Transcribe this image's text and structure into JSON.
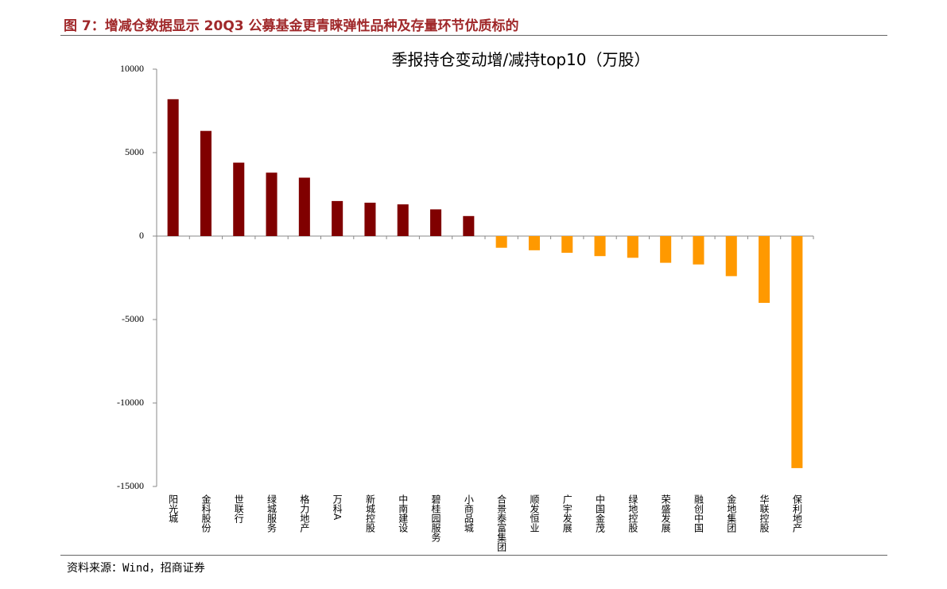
{
  "header": {
    "title": "图 7：增减仓数据显示 20Q3 公募基金更青睐弹性品种及存量环节优质标的"
  },
  "chart_data": {
    "type": "bar",
    "title": "季报持仓变动增/减持top10（万股）",
    "categories": [
      "阳光城",
      "金科股份",
      "世联行",
      "绿城服务",
      "格力地产",
      "万科A",
      "新城控股",
      "中南建设",
      "碧桂园服务",
      "小商品城",
      "合景泰富集团",
      "顺发恒业",
      "广宇发展",
      "中国金茂",
      "绿地控股",
      "荣盛发展",
      "融创中国",
      "金地集团",
      "华联控股",
      "保利地产"
    ],
    "values": [
      8200,
      6300,
      4400,
      3800,
      3500,
      2100,
      2000,
      1900,
      1600,
      1200,
      -700,
      -850,
      -1000,
      -1200,
      -1300,
      -1600,
      -1700,
      -2400,
      -4000,
      -13900
    ],
    "color_positive": "#800000",
    "color_negative": "#ff9900",
    "ylim": [
      -15000,
      10000
    ],
    "yticks": [
      10000,
      5000,
      0,
      -5000,
      -10000,
      -15000
    ],
    "grid": false
  },
  "footer": {
    "source": "资料来源：Wind，招商证券"
  }
}
